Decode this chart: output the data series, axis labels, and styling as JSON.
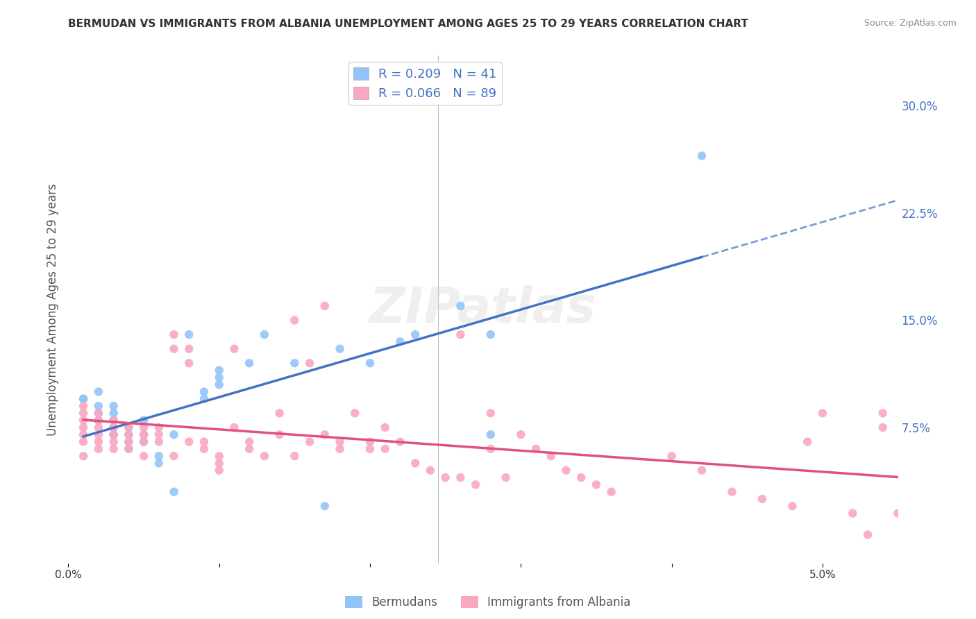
{
  "title": "BERMUDAN VS IMMIGRANTS FROM ALBANIA UNEMPLOYMENT AMONG AGES 25 TO 29 YEARS CORRELATION CHART",
  "source": "Source: ZipAtlas.com",
  "xlabel": "",
  "ylabel": "Unemployment Among Ages 25 to 29 years",
  "legend_label1": "Bermudans",
  "legend_label2": "Immigrants from Albania",
  "r1": 0.209,
  "n1": 41,
  "r2": 0.066,
  "n2": 89,
  "color1": "#92c5f7",
  "color2": "#f9a8c0",
  "trend1_color": "#4472c4",
  "trend2_color": "#e05080",
  "xlim": [
    0.0,
    0.055
  ],
  "ylim": [
    -0.02,
    0.335
  ],
  "xticks": [
    0.0,
    0.01,
    0.02,
    0.03,
    0.04,
    0.05
  ],
  "xticklabels": [
    "0.0%",
    "",
    "",
    "",
    "",
    "5.0%"
  ],
  "yticks_right": [
    0.075,
    0.15,
    0.225,
    0.3
  ],
  "yticklabels_right": [
    "7.5%",
    "15.0%",
    "22.5%",
    "30.0%"
  ],
  "watermark": "ZIPatlas",
  "background_color": "#ffffff",
  "grid_color": "#cccccc",
  "bermudans_x": [
    0.001,
    0.001,
    0.002,
    0.002,
    0.002,
    0.002,
    0.003,
    0.003,
    0.003,
    0.003,
    0.003,
    0.003,
    0.004,
    0.004,
    0.004,
    0.004,
    0.005,
    0.005,
    0.005,
    0.006,
    0.006,
    0.007,
    0.007,
    0.008,
    0.009,
    0.009,
    0.01,
    0.01,
    0.01,
    0.012,
    0.013,
    0.015,
    0.017,
    0.018,
    0.02,
    0.022,
    0.023,
    0.026,
    0.028,
    0.028,
    0.042
  ],
  "bermudans_y": [
    0.095,
    0.095,
    0.08,
    0.09,
    0.1,
    0.085,
    0.07,
    0.07,
    0.075,
    0.08,
    0.085,
    0.09,
    0.06,
    0.065,
    0.07,
    0.075,
    0.065,
    0.07,
    0.08,
    0.05,
    0.055,
    0.03,
    0.07,
    0.14,
    0.095,
    0.1,
    0.105,
    0.11,
    0.115,
    0.12,
    0.14,
    0.12,
    0.02,
    0.13,
    0.12,
    0.135,
    0.14,
    0.16,
    0.07,
    0.14,
    0.265
  ],
  "albania_x": [
    0.001,
    0.001,
    0.001,
    0.001,
    0.001,
    0.001,
    0.001,
    0.002,
    0.002,
    0.002,
    0.002,
    0.002,
    0.002,
    0.003,
    0.003,
    0.003,
    0.003,
    0.003,
    0.004,
    0.004,
    0.004,
    0.004,
    0.005,
    0.005,
    0.005,
    0.005,
    0.006,
    0.006,
    0.006,
    0.007,
    0.007,
    0.007,
    0.008,
    0.008,
    0.008,
    0.009,
    0.009,
    0.01,
    0.01,
    0.01,
    0.011,
    0.011,
    0.012,
    0.012,
    0.013,
    0.014,
    0.014,
    0.015,
    0.015,
    0.016,
    0.016,
    0.017,
    0.017,
    0.018,
    0.018,
    0.019,
    0.02,
    0.02,
    0.021,
    0.021,
    0.022,
    0.023,
    0.024,
    0.025,
    0.026,
    0.026,
    0.027,
    0.028,
    0.028,
    0.029,
    0.03,
    0.031,
    0.032,
    0.033,
    0.034,
    0.035,
    0.036,
    0.04,
    0.042,
    0.044,
    0.046,
    0.048,
    0.049,
    0.05,
    0.052,
    0.053,
    0.054,
    0.054,
    0.055
  ],
  "albania_y": [
    0.09,
    0.085,
    0.08,
    0.075,
    0.07,
    0.065,
    0.055,
    0.085,
    0.08,
    0.075,
    0.07,
    0.065,
    0.06,
    0.08,
    0.075,
    0.07,
    0.065,
    0.06,
    0.075,
    0.07,
    0.065,
    0.06,
    0.075,
    0.07,
    0.065,
    0.055,
    0.075,
    0.07,
    0.065,
    0.14,
    0.13,
    0.055,
    0.13,
    0.12,
    0.065,
    0.065,
    0.06,
    0.055,
    0.05,
    0.045,
    0.13,
    0.075,
    0.065,
    0.06,
    0.055,
    0.085,
    0.07,
    0.15,
    0.055,
    0.12,
    0.065,
    0.16,
    0.07,
    0.065,
    0.06,
    0.085,
    0.065,
    0.06,
    0.075,
    0.06,
    0.065,
    0.05,
    0.045,
    0.04,
    0.14,
    0.04,
    0.035,
    0.085,
    0.06,
    0.04,
    0.07,
    0.06,
    0.055,
    0.045,
    0.04,
    0.035,
    0.03,
    0.055,
    0.045,
    0.03,
    0.025,
    0.02,
    0.065,
    0.085,
    0.015,
    0.0,
    0.085,
    0.075,
    0.015
  ]
}
